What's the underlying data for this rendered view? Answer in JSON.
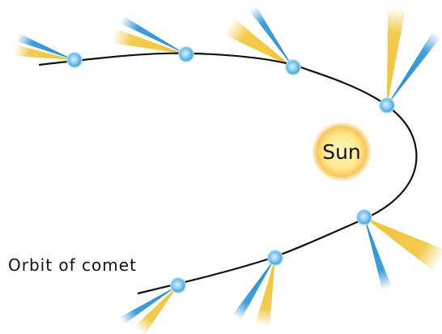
{
  "labels": {
    "sun": "Sun",
    "orbit": "Orbit of comet"
  }
}
